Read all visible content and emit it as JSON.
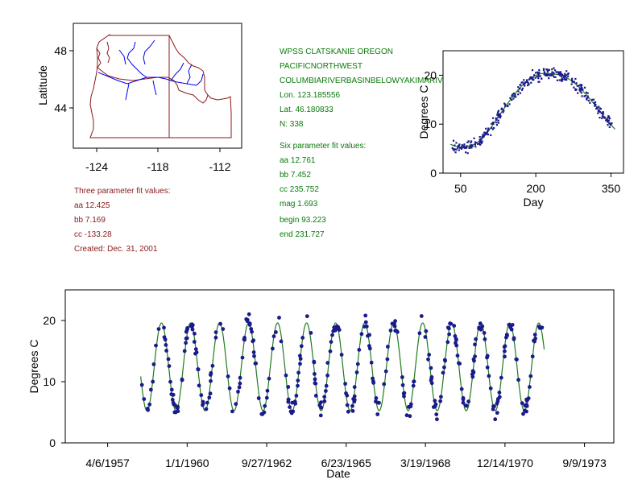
{
  "map": {
    "ylabel": "Latitude",
    "yticks": [
      "48",
      "44"
    ],
    "xticks": [
      "-124",
      "-118",
      "-112"
    ]
  },
  "site": {
    "name": "WPSS CLATSKANIE OREGON",
    "region": "PACIFICNORTHWEST",
    "basin": "COLUMBIARIVERBASINBELOWYAKIMARIVER",
    "lon": "Lon. 123.185556",
    "lat": "Lat. 46.180833",
    "n": "N: 338"
  },
  "three_param": {
    "title": "Three parameter fit values:",
    "aa": "aa 12.425",
    "bb": "bb 7.169",
    "cc": "cc -133.28",
    "created": "Created:   Dec. 31, 2001"
  },
  "six_param": {
    "title": "Six parameter fit values:",
    "aa": "aa 12.761",
    "bb": "bb 7.452",
    "cc": "cc 235.752",
    "mag": "mag 1.693",
    "begin": "begin 93.223",
    "end": "end 231.727"
  },
  "colors": {
    "points": "#1a1a8c",
    "fit": "#1f7a1f",
    "map_border": "#8b1a1a",
    "rivers": "#0000ee",
    "text_red": "#8b1a1a",
    "text_green": "#0a7a0a"
  },
  "chart_data": [
    {
      "type": "scatter",
      "name": "day-of-year",
      "xlabel": "Day",
      "ylabel": "Degrees C",
      "xticks": [
        50,
        200,
        350
      ],
      "yticks": [
        0,
        10,
        20
      ],
      "xlim": [
        15,
        375
      ],
      "ylim": [
        0,
        25
      ],
      "fit": {
        "aa": 12.761,
        "bb": 7.452,
        "cc": 235.752,
        "mag": 1.693,
        "begin": 93.223,
        "end": 231.727
      }
    },
    {
      "type": "scatter",
      "name": "time-series",
      "xlabel": "Date",
      "ylabel": "Degrees C",
      "xtick_labels": [
        "4/6/1957",
        "1/1/1960",
        "9/27/1962",
        "6/23/1965",
        "3/19/1968",
        "12/14/1970",
        "9/9/1973"
      ],
      "yticks": [
        0,
        10,
        20
      ],
      "ylim": [
        0,
        25
      ],
      "x_range_years": [
        1955.8,
        1974.7
      ],
      "data_range_years": [
        1958.4,
        1972.3
      ],
      "fit": {
        "aa": 12.425,
        "bb": 7.169,
        "cc": -133.28
      }
    }
  ]
}
